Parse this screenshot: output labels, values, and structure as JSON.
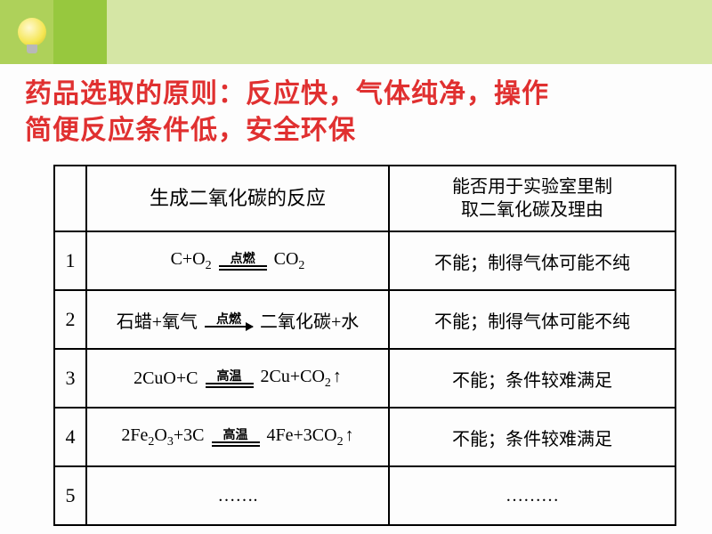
{
  "header": {
    "icon": "lightbulb-icon",
    "band_colors": [
      "#aed15a",
      "#97c83e",
      "#d5e6a5"
    ]
  },
  "title": {
    "line1": "药品选取的原则：反应快，气体纯净，操作",
    "line2": "简便反应条件低，安全环保",
    "color": "#e03030",
    "fontsize_pt": 22
  },
  "table": {
    "columns": [
      {
        "label_line1": "生成二氧化碳的反应"
      },
      {
        "label_line1": "能否用于实验室里制",
        "label_line2": "取二氧化碳及理由"
      }
    ],
    "rows": [
      {
        "num": "1",
        "reaction": {
          "type": "eq_dbl",
          "left": "C+O₂",
          "condition": "点燃",
          "right": "CO₂",
          "gas_arrow": false
        },
        "reason": "不能；制得气体可能不纯"
      },
      {
        "num": "2",
        "reaction": {
          "type": "arrow",
          "left": "石蜡+氧气",
          "condition": "点燃",
          "right": "二氧化碳+水",
          "gas_arrow": false,
          "cn": true
        },
        "reason": "不能；制得气体可能不纯"
      },
      {
        "num": "3",
        "reaction": {
          "type": "eq_dbl",
          "left": "2CuO+C",
          "condition": "高温",
          "right": "2Cu+CO₂",
          "gas_arrow": true
        },
        "reason": "不能；条件较难满足"
      },
      {
        "num": "4",
        "reaction": {
          "type": "eq_dbl",
          "left": "2Fe₂O₃+3C",
          "condition": "高温",
          "right": "4Fe+3CO₂",
          "gas_arrow": true
        },
        "reason": "不能；条件较难满足"
      },
      {
        "num": "5",
        "reaction": {
          "type": "text",
          "text": "……."
        },
        "reason": "………"
      }
    ],
    "border_color": "#000000",
    "body_fontsize_pt": 15
  },
  "background_color": "#fdfdfd"
}
